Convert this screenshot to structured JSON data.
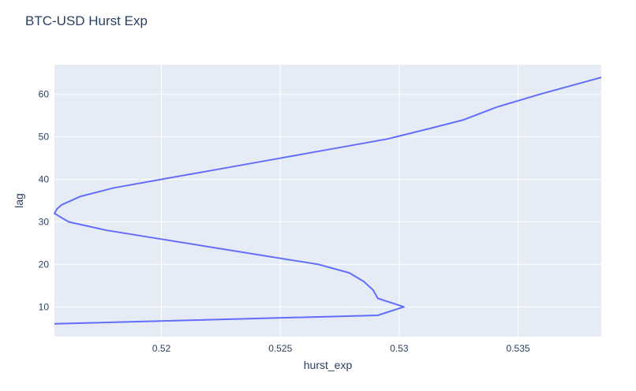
{
  "chart_data": {
    "type": "line",
    "title": "BTC-USD Hurst Exp",
    "xlabel": "hurst_exp",
    "ylabel": "lag",
    "xlim": [
      0.5155,
      0.5385
    ],
    "ylim": [
      3,
      67
    ],
    "x_ticks": [
      0.52,
      0.525,
      0.53,
      0.535
    ],
    "x_tick_labels": [
      "0.52",
      "0.525",
      "0.53",
      "0.535"
    ],
    "y_ticks": [
      10,
      20,
      30,
      40,
      50,
      60
    ],
    "y_tick_labels": [
      "10",
      "20",
      "30",
      "40",
      "50",
      "60"
    ],
    "grid": true,
    "colors": {
      "line": "#636efa",
      "plot_bg": "#e5ecf6",
      "grid": "#ffffff",
      "text": "#2a3f5f"
    },
    "series": [
      {
        "x": [
          0.5155,
          0.5291,
          0.5302,
          0.5291,
          0.5289,
          0.5285,
          0.5279,
          0.5266,
          0.5177,
          0.5161,
          0.5155,
          0.5156,
          0.5158,
          0.5166,
          0.518,
          0.52,
          0.522,
          0.5245,
          0.527,
          0.5295,
          0.5313,
          0.5327,
          0.5341,
          0.5359,
          0.5385
        ],
        "y": [
          6,
          8,
          10,
          12,
          14,
          16,
          18,
          20,
          28,
          30,
          32,
          33,
          34,
          36,
          38,
          40,
          42,
          44.5,
          47,
          49.5,
          52,
          54,
          57,
          60,
          64
        ]
      }
    ]
  }
}
